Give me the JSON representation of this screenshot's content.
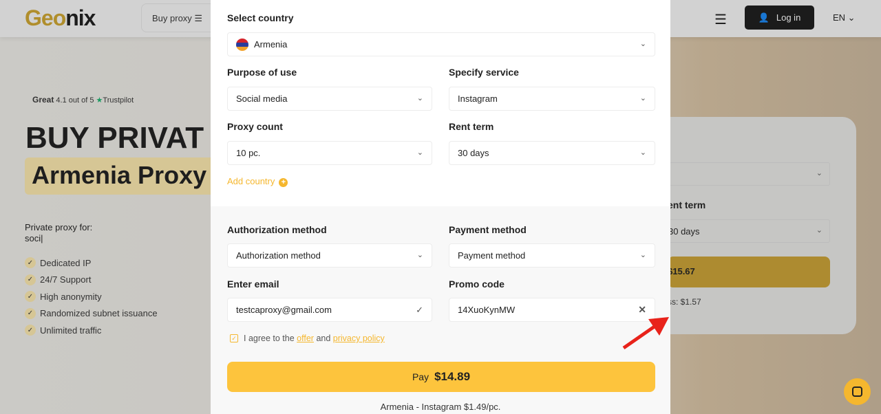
{
  "header": {
    "logo": "Geonix",
    "logo_part1": "Geo",
    "logo_part2": "nix",
    "buy_proxy": "Buy proxy",
    "login": "Log in",
    "language": "EN"
  },
  "hero": {
    "rating_word": "Great",
    "rating": "4.1 out of 5",
    "trustpilot": "Trustpilot",
    "title": "BUY PRIVAT",
    "subtitle": "Armenia Proxy",
    "private_for": "Private proxy for:",
    "typed": "soci",
    "features": [
      "Dedicated IP",
      "24/7 Support",
      "High anonymity",
      "Randomized subnet issuance",
      "Unlimited traffic"
    ]
  },
  "bg_card": {
    "rent_term_label": "ent term",
    "rent_term": "30 days",
    "price": "$15.67",
    "less": "ss: $1.57"
  },
  "modal": {
    "country_label": "Select country",
    "country": "Armenia",
    "purpose_label": "Purpose of use",
    "purpose": "Social media",
    "service_label": "Specify service",
    "service": "Instagram",
    "count_label": "Proxy count",
    "count": "10 pc.",
    "term_label": "Rent term",
    "term": "30 days",
    "add_country": "Add country",
    "auth_label": "Authorization method",
    "auth": "Authorization method",
    "payment_label": "Payment method",
    "payment": "Payment method",
    "email_label": "Enter email",
    "email": "testcaproxy@gmail.com",
    "promo_label": "Promo code",
    "promo": "14XuoKynMW",
    "agree_prefix": "I agree to the",
    "offer": "offer",
    "and": "and",
    "privacy": "privacy policy",
    "pay_label": "Pay",
    "pay_amount": "$14.89",
    "summary": "Armenia - Instagram $1.49/pc."
  },
  "colors": {
    "accent": "#fdc43d",
    "link": "#f5b72e",
    "annotation_arrow": "#e8231b"
  }
}
